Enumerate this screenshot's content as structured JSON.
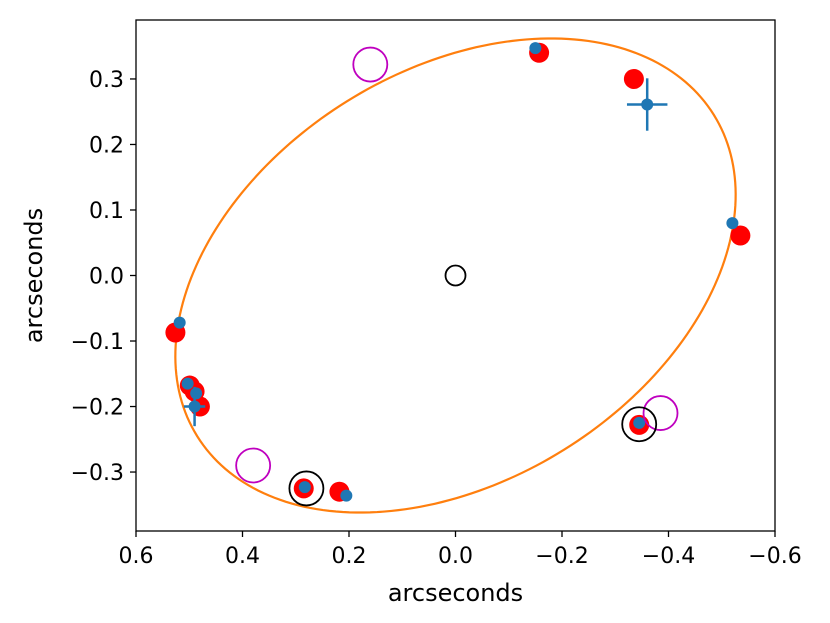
{
  "chart_data": {
    "type": "scatter",
    "xlabel": "arcseconds",
    "ylabel": "arcseconds",
    "xlim": [
      0.6,
      -0.6
    ],
    "ylim": [
      -0.39,
      0.39
    ],
    "x_ticks": [
      "0.6",
      "0.4",
      "0.2",
      "0.0",
      "−0.2",
      "−0.4",
      "−0.6"
    ],
    "y_ticks": [
      "0.3",
      "0.2",
      "0.1",
      "0.0",
      "−0.1",
      "−0.2",
      "−0.3"
    ],
    "grid": false,
    "colors": {
      "orbit": "#ff7f0e",
      "model_points": "#ff0000",
      "observed_points": "#1f77b4",
      "magenta_circles": "#bf00bf",
      "black_circles": "#000000"
    },
    "orbit_ellipse": {
      "center": [
        0.0,
        0.0
      ],
      "semi_axis_x": 0.535,
      "semi_axis_y": 0.355,
      "tilt": [
        [
          0.52,
          -0.07
        ],
        [
          -0.08,
          0.355
        ],
        [
          -0.535,
          0.06
        ],
        [
          0.08,
          -0.355
        ]
      ]
    },
    "series": [
      {
        "marker": "red-filled-circle",
        "points": [
          [
            -0.157,
            0.34
          ],
          [
            -0.335,
            0.3
          ],
          [
            -0.535,
            0.061
          ],
          [
            0.526,
            -0.087
          ],
          [
            0.499,
            -0.168
          ],
          [
            0.49,
            -0.177
          ],
          [
            0.48,
            -0.2
          ],
          [
            0.285,
            -0.325
          ],
          [
            0.218,
            -0.33
          ],
          [
            -0.345,
            -0.228
          ]
        ]
      },
      {
        "marker": "blue-filled-circle",
        "points": [
          [
            -0.15,
            0.347
          ],
          [
            -0.36,
            0.261
          ],
          [
            -0.52,
            0.08
          ],
          [
            0.518,
            -0.072
          ],
          [
            0.503,
            -0.165
          ],
          [
            0.487,
            -0.18
          ],
          [
            0.49,
            -0.2
          ],
          [
            0.283,
            -0.323
          ],
          [
            0.205,
            -0.336
          ],
          [
            -0.345,
            -0.225
          ]
        ],
        "error_bars": [
          {
            "x": -0.36,
            "y": 0.261,
            "xerr": 0.038,
            "yerr": 0.04
          },
          {
            "x": 0.49,
            "y": -0.2,
            "xerr": 0.02,
            "yerr": 0.03
          }
        ]
      },
      {
        "marker": "magenta-open-circle",
        "points": [
          [
            0.16,
            0.322
          ],
          [
            -0.385,
            -0.21
          ],
          [
            0.38,
            -0.29
          ]
        ]
      },
      {
        "marker": "black-open-circle",
        "points": [
          [
            0.0,
            0.0
          ],
          [
            0.28,
            -0.325
          ],
          [
            -0.345,
            -0.227
          ]
        ]
      }
    ]
  }
}
